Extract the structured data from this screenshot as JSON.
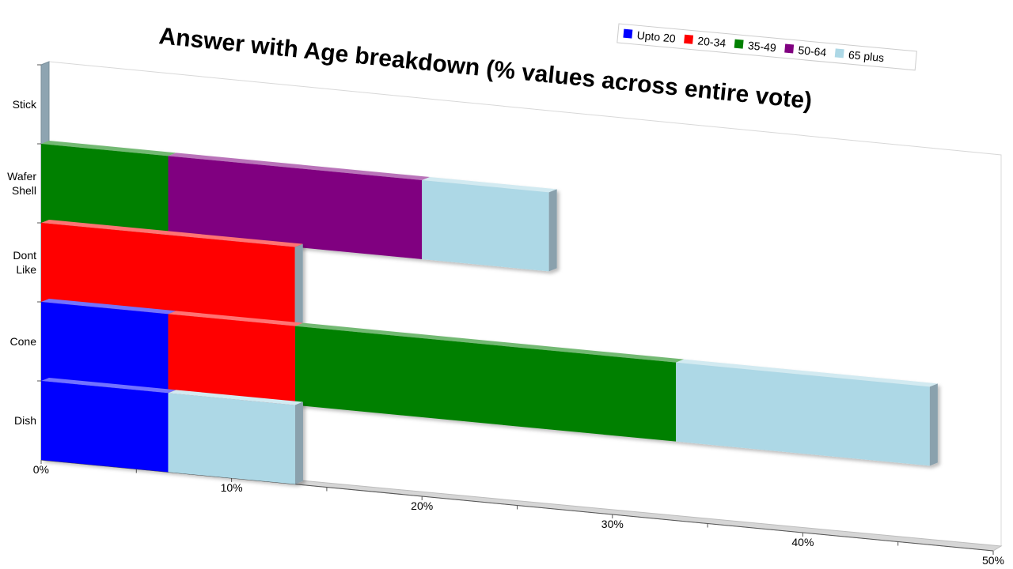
{
  "chart_data": {
    "type": "bar",
    "orientation": "horizontal",
    "stacked": true,
    "title": "Answer with Age breakdown (% values across entire vote)",
    "categories": [
      "Stick",
      "Wafer Shell",
      "Dont Like",
      "Cone",
      "Dish"
    ],
    "category_lines": [
      [
        "Stick"
      ],
      [
        "Wafer",
        "Shell"
      ],
      [
        "Dont",
        "Like"
      ],
      [
        "Cone"
      ],
      [
        "Dish"
      ]
    ],
    "series": [
      {
        "name": "Upto 20",
        "color": "#0000ff",
        "values": [
          0,
          0,
          0,
          6.67,
          6.67
        ]
      },
      {
        "name": "20-34",
        "color": "#ff0000",
        "values": [
          0,
          0,
          13.33,
          6.67,
          0
        ]
      },
      {
        "name": "35-49",
        "color": "#008000",
        "values": [
          0,
          6.67,
          0,
          20,
          0
        ]
      },
      {
        "name": "50-64",
        "color": "#800080",
        "values": [
          0,
          13.33,
          0,
          0,
          0
        ]
      },
      {
        "name": "65 plus",
        "color": "#add8e6",
        "values": [
          0,
          6.67,
          0,
          13.33,
          6.67
        ]
      }
    ],
    "x_ticks": [
      "0%",
      "10%",
      "20%",
      "30%",
      "40%",
      "50%"
    ],
    "xlim": [
      0,
      50
    ],
    "legend_position": "top-right",
    "grid": false
  }
}
